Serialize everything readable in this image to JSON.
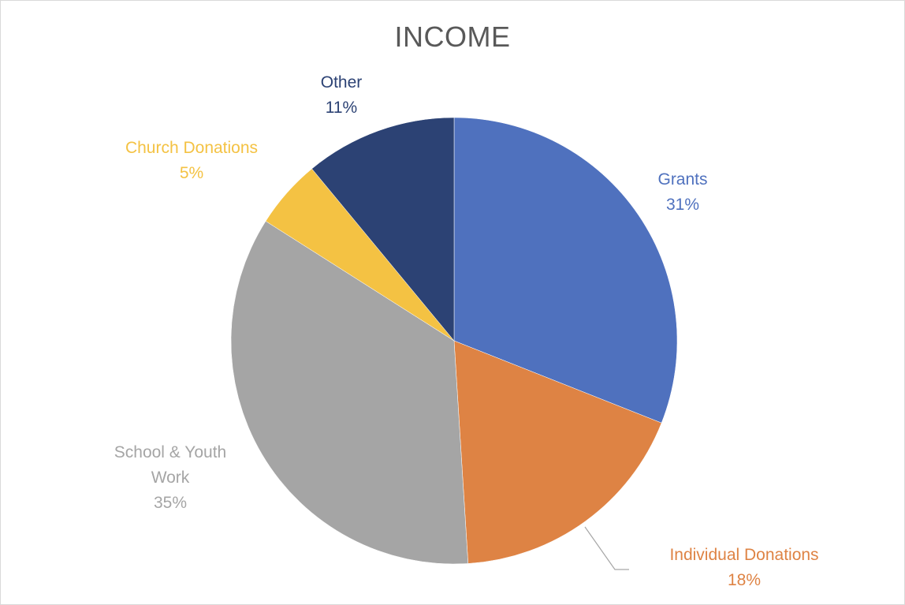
{
  "chart_data": {
    "type": "pie",
    "title": "INCOME",
    "slices": [
      {
        "name": "Grants",
        "value": 31,
        "label": "31%",
        "color": "#4f71be"
      },
      {
        "name": "Individual Donations",
        "value": 18,
        "label": "18%",
        "color": "#de8344"
      },
      {
        "name": "School & Youth Work",
        "value": 35,
        "label": "35%",
        "color": "#a5a5a5"
      },
      {
        "name": "Church Donations",
        "value": 5,
        "label": "5%",
        "color": "#f4c243"
      },
      {
        "name": "Other",
        "value": 11,
        "label": "11%",
        "color": "#2c4274"
      }
    ],
    "start_angle_deg": 0,
    "direction": "clockwise",
    "legend": "none"
  }
}
